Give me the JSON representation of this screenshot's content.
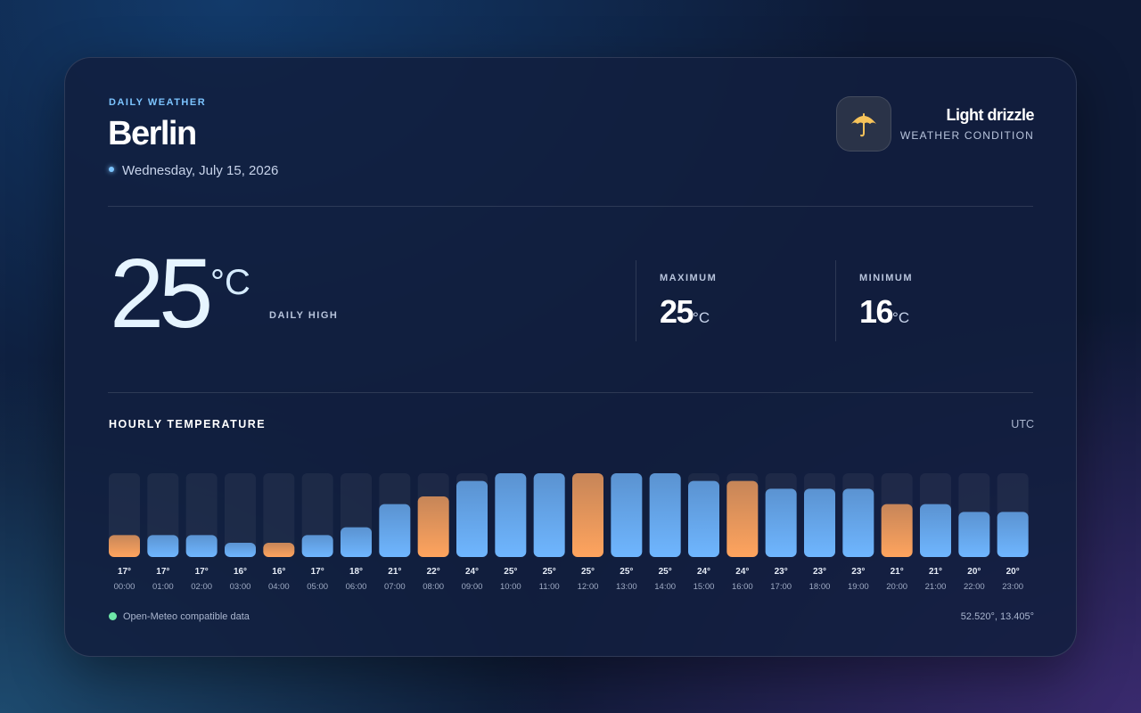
{
  "header": {
    "kicker": "DAILY WEATHER",
    "city": "Berlin",
    "date": "Wednesday, July 15, 2026",
    "condition": "Light drizzle",
    "condition_label": "WEATHER CONDITION"
  },
  "summary": {
    "temperature": 25,
    "unit": "°C",
    "temperature_label": "DAILY HIGH",
    "maximum_label": "MAXIMUM",
    "maximum": 25,
    "minimum_label": "MINIMUM",
    "minimum": 16
  },
  "chart_data": {
    "type": "bar",
    "title": "HOURLY TEMPERATURE",
    "timezone": "UTC",
    "categories": [
      "00:00",
      "01:00",
      "02:00",
      "03:00",
      "04:00",
      "05:00",
      "06:00",
      "07:00",
      "08:00",
      "09:00",
      "10:00",
      "11:00",
      "12:00",
      "13:00",
      "14:00",
      "15:00",
      "16:00",
      "17:00",
      "18:00",
      "19:00",
      "20:00",
      "21:00",
      "22:00",
      "23:00"
    ],
    "values": [
      17,
      17,
      17,
      16,
      16,
      17,
      18,
      21,
      22,
      24,
      25,
      25,
      25,
      25,
      25,
      24,
      24,
      23,
      23,
      23,
      21,
      21,
      20,
      20
    ],
    "value_labels": [
      "17°",
      "17°",
      "17°",
      "16°",
      "16°",
      "17°",
      "18°",
      "21°",
      "22°",
      "24°",
      "25°",
      "25°",
      "25°",
      "25°",
      "25°",
      "24°",
      "24°",
      "23°",
      "23°",
      "23°",
      "21°",
      "21°",
      "20°",
      "20°"
    ],
    "colors": [
      "#ffa45e",
      "#6fb6ff",
      "#6fb6ff",
      "#6fb6ff",
      "#ffa45e",
      "#6fb6ff",
      "#6fb6ff",
      "#6fb6ff",
      "#ffa45e",
      "#6fb6ff",
      "#6fb6ff",
      "#6fb6ff",
      "#ffa45e",
      "#6fb6ff",
      "#6fb6ff",
      "#6fb6ff",
      "#ffa45e",
      "#6fb6ff",
      "#6fb6ff",
      "#6fb6ff",
      "#ffa45e",
      "#6fb6ff",
      "#6fb6ff",
      "#6fb6ff"
    ]
  },
  "footer": {
    "source": "Open-Meteo compatible data",
    "coordinates": "52.520°, 13.405°"
  }
}
